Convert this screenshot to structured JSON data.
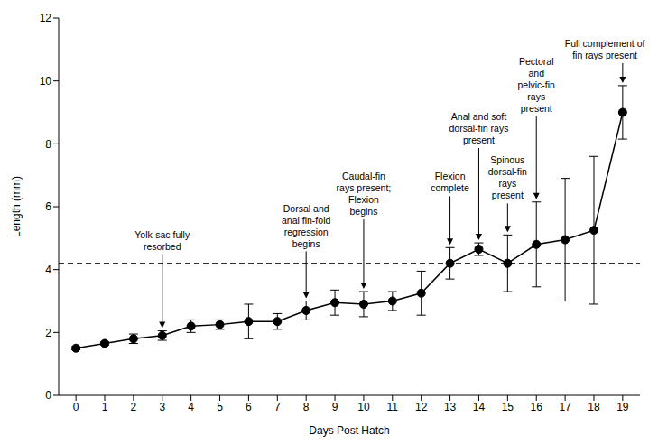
{
  "chart_data": {
    "type": "line",
    "x_label": "Days Post Hatch",
    "y_label": "Length (mm)",
    "x": [
      0,
      1,
      2,
      3,
      4,
      5,
      6,
      7,
      8,
      9,
      10,
      11,
      12,
      13,
      14,
      15,
      16,
      17,
      18,
      19
    ],
    "values": [
      1.5,
      1.65,
      1.8,
      1.9,
      2.2,
      2.25,
      2.35,
      2.35,
      2.7,
      2.95,
      2.9,
      3.0,
      3.25,
      4.2,
      4.65,
      4.2,
      4.8,
      4.95,
      5.25,
      9.0
    ],
    "error": [
      0.05,
      0.05,
      0.15,
      0.15,
      0.2,
      0.15,
      0.55,
      0.25,
      0.3,
      0.4,
      0.4,
      0.3,
      0.7,
      0.5,
      0.2,
      0.9,
      1.35,
      1.95,
      2.35,
      0.85
    ],
    "color": "#000000",
    "marker": "circle",
    "line_style": "solid",
    "xlim": [
      -0.6,
      19.6
    ],
    "xticks": [
      0,
      1,
      2,
      3,
      4,
      5,
      6,
      7,
      8,
      9,
      10,
      11,
      12,
      13,
      14,
      15,
      16,
      17,
      18,
      19
    ],
    "ylim": [
      0,
      12
    ],
    "yticks": [
      0,
      2,
      4,
      6,
      8,
      10,
      12
    ],
    "reference_line": {
      "y": 4.2,
      "line_style": "dashed"
    },
    "annotations": [
      {
        "x": 3,
        "lines": [
          "Yolk-sac fully",
          "resorbed"
        ]
      },
      {
        "x": 8,
        "lines": [
          "Dorsal and",
          "anal fin-fold",
          "regression",
          "begins"
        ]
      },
      {
        "x": 10,
        "lines": [
          "Caudal-fin",
          "rays present;",
          "Flexion",
          "begins"
        ]
      },
      {
        "x": 13,
        "lines": [
          "Flexion",
          "complete"
        ]
      },
      {
        "x": 14,
        "lines": [
          "Anal and soft",
          "dorsal-fin rays",
          "present"
        ]
      },
      {
        "x": 15,
        "lines": [
          "Spinous",
          "dorsal-fin",
          "rays",
          "present"
        ]
      },
      {
        "x": 16,
        "lines": [
          "Pectoral",
          "and",
          "pelvic-fin",
          "rays",
          "present"
        ]
      },
      {
        "x": 19,
        "lines": [
          "Full complement of",
          "fin rays present"
        ]
      }
    ]
  }
}
